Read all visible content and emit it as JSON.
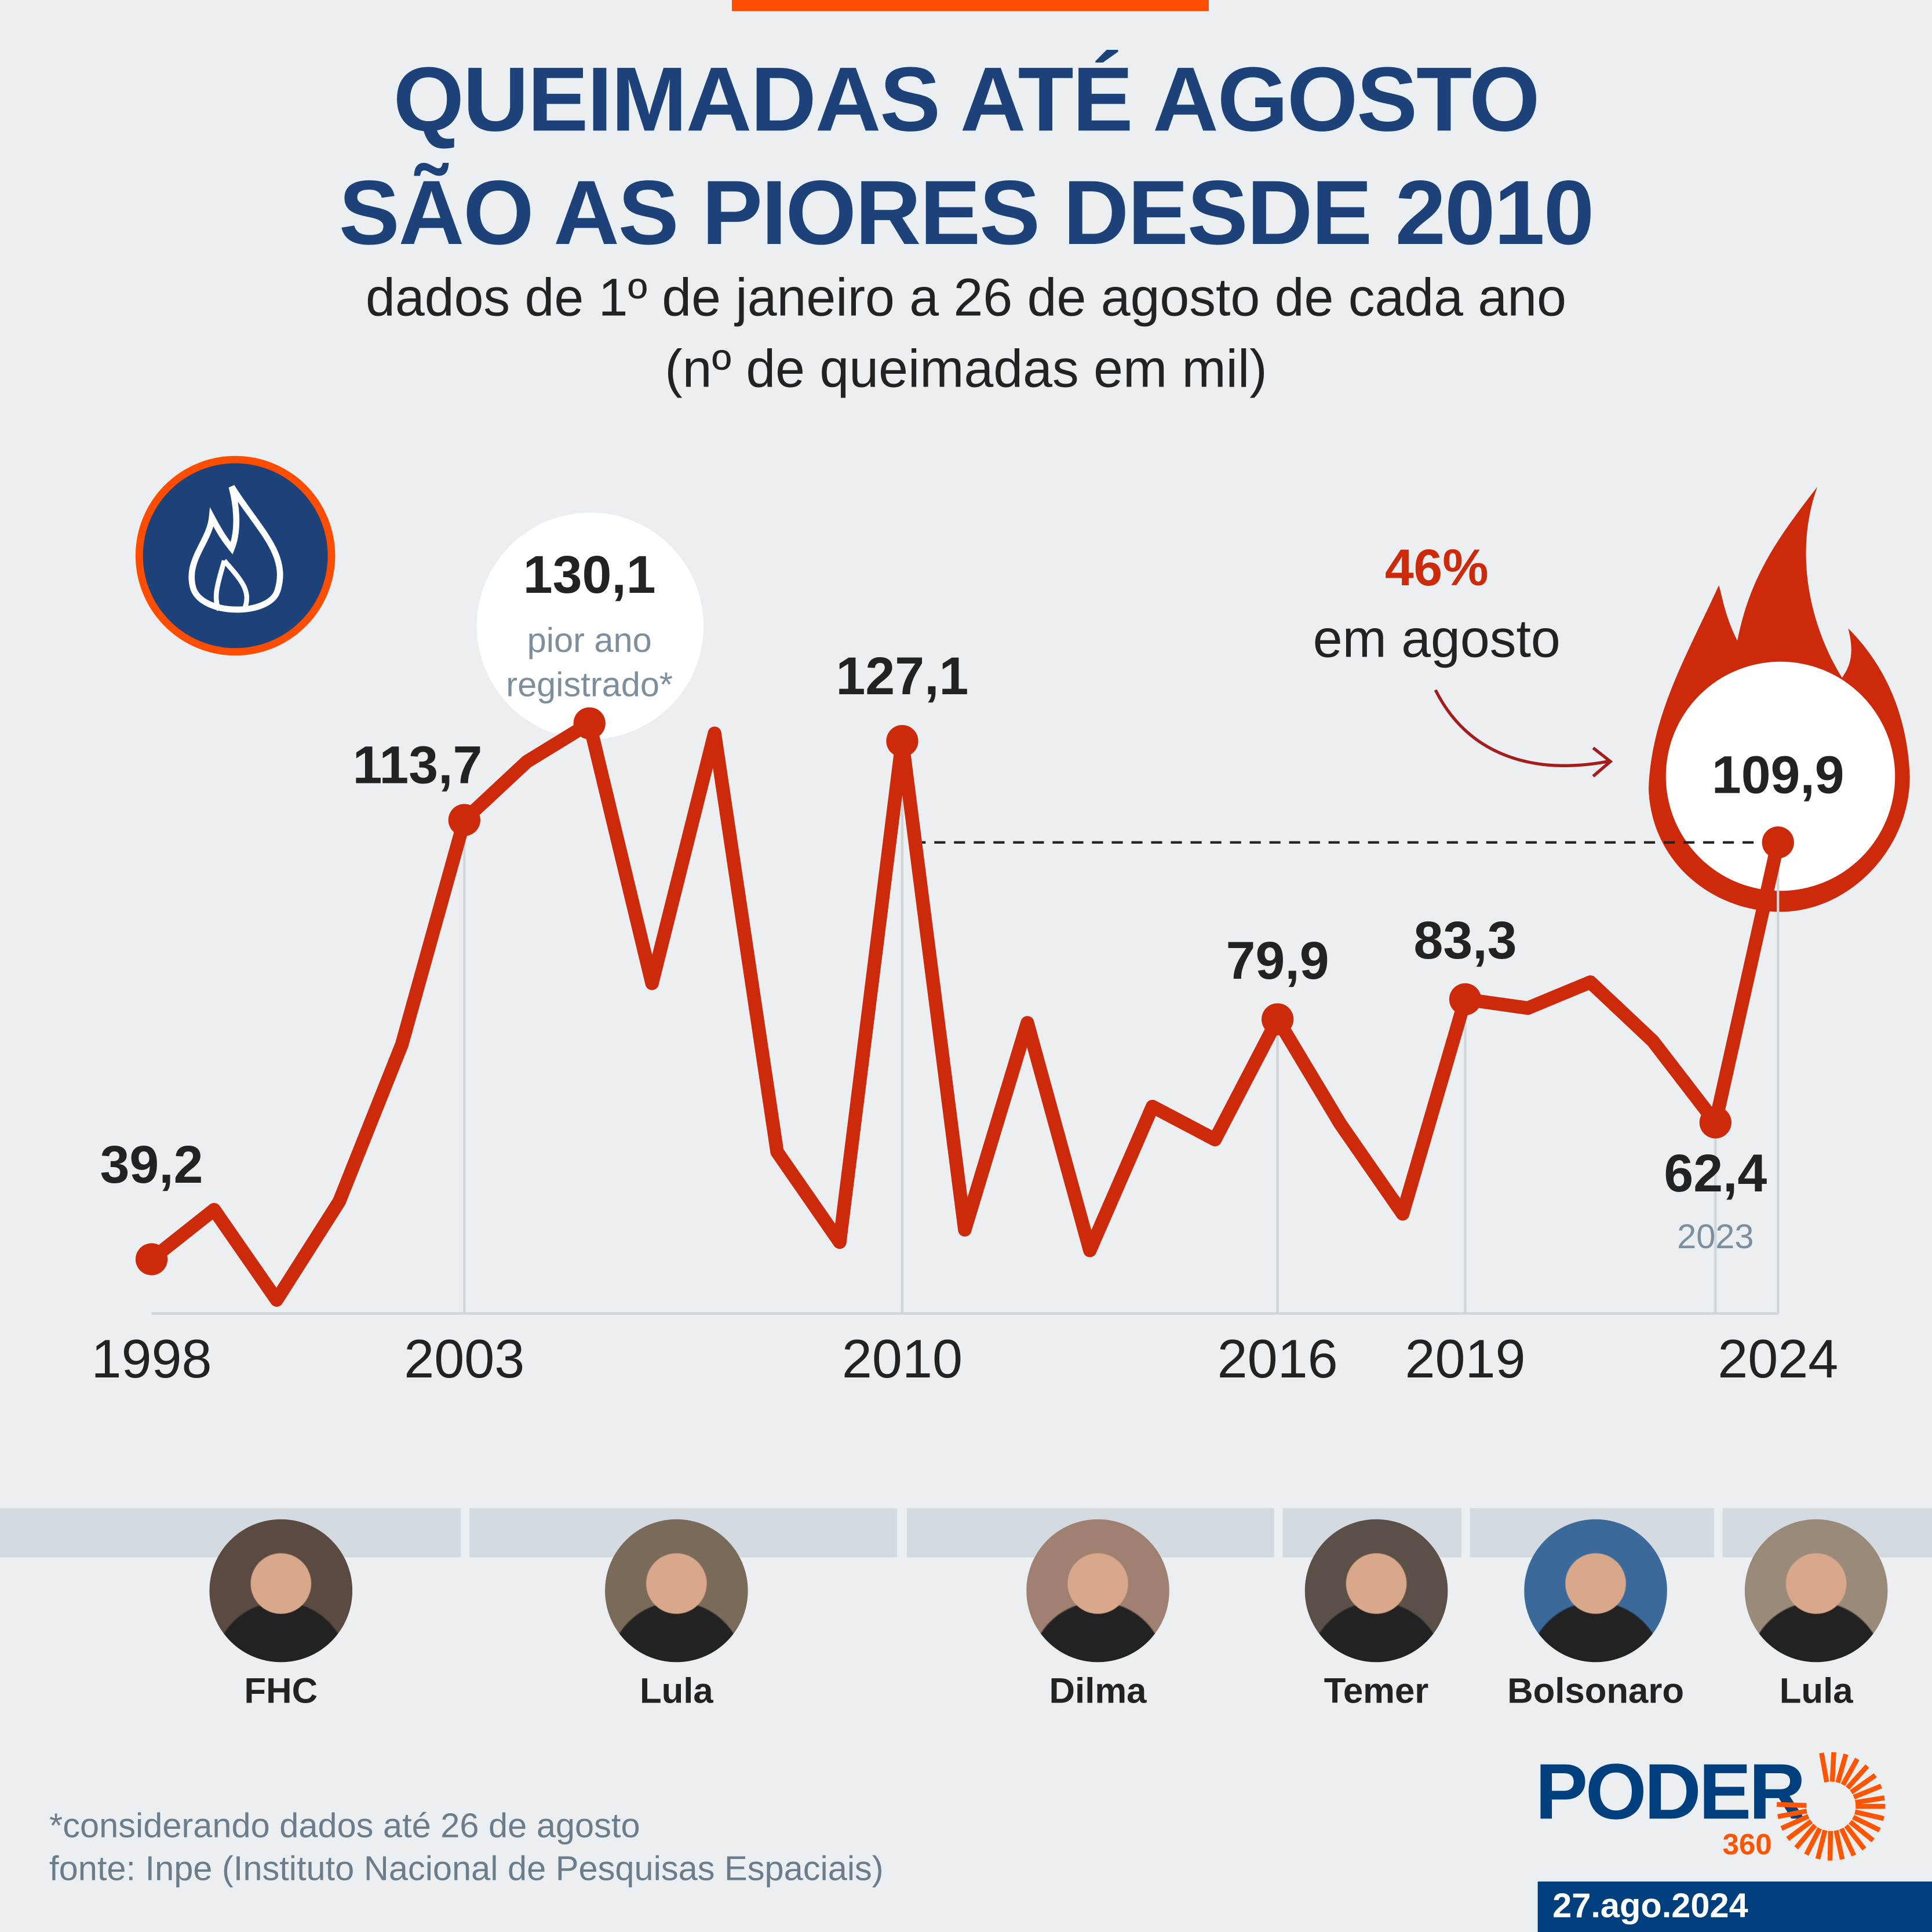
{
  "header": {
    "title_line1": "QUEIMADAS ATÉ AGOSTO",
    "title_line2": "SÃO AS PIORES DESDE 2010",
    "subtitle_line1": "dados de 1º de janeiro a 26 de agosto de cada ano",
    "subtitle_line2": "(nº de queimadas em mil)"
  },
  "chart_data": {
    "type": "line",
    "title": "QUEIMADAS ATÉ AGOSTO SÃO AS PIORES DESDE 2010",
    "ylabel": "nº de queimadas em mil",
    "x": [
      1998,
      1999,
      2000,
      2001,
      2002,
      2003,
      2004,
      2005,
      2006,
      2007,
      2008,
      2009,
      2010,
      2011,
      2012,
      2013,
      2014,
      2015,
      2016,
      2017,
      2018,
      2019,
      2020,
      2021,
      2022,
      2023,
      2024
    ],
    "values": [
      39.2,
      47.6,
      32.3,
      49.0,
      75.6,
      113.7,
      123.6,
      130.1,
      86.0,
      128.4,
      57.4,
      42.1,
      127.1,
      44.2,
      79.3,
      40.7,
      65.1,
      59.5,
      79.9,
      62.2,
      46.9,
      83.3,
      81.8,
      86.2,
      76.2,
      62.4,
      109.9
    ],
    "ylim": [
      30,
      135
    ],
    "tick_labels": [
      "1998",
      "2003",
      "2010",
      "2016",
      "2019",
      "2024"
    ],
    "labels": [
      {
        "year": 1998,
        "text": "39,2"
      },
      {
        "year": 2003,
        "text": "113,7"
      },
      {
        "year": 2005,
        "text": "130,1",
        "note": "pior ano",
        "note2": "registrado*"
      },
      {
        "year": 2010,
        "text": "127,1"
      },
      {
        "year": 2016,
        "text": "79,9"
      },
      {
        "year": 2019,
        "text": "83,3"
      },
      {
        "year": 2023,
        "text": "62,4",
        "note": "2023"
      },
      {
        "year": 2024,
        "text": "109,9"
      }
    ],
    "annotation": {
      "pct": "46%",
      "text": "em agosto"
    },
    "line_color": "#cc2a0a"
  },
  "presidents": [
    {
      "name": "FHC",
      "start": 1998,
      "end": 2002
    },
    {
      "name": "Lula",
      "start": 2003,
      "end": 2010
    },
    {
      "name": "Dilma",
      "start": 2011,
      "end": 2016
    },
    {
      "name": "Temer",
      "start": 2016,
      "end": 2018
    },
    {
      "name": "Bolsonaro",
      "start": 2019,
      "end": 2022
    },
    {
      "name": "Lula",
      "start": 2023,
      "end": 2024
    }
  ],
  "footer": {
    "note": "*considerando dados até 26 de agosto",
    "source": "fonte: Inpe (Instituto Nacional de Pesquisas Espaciais)"
  },
  "brand": {
    "logo": "PODER",
    "logo_sub": "360",
    "date": "27.ago.2024"
  }
}
